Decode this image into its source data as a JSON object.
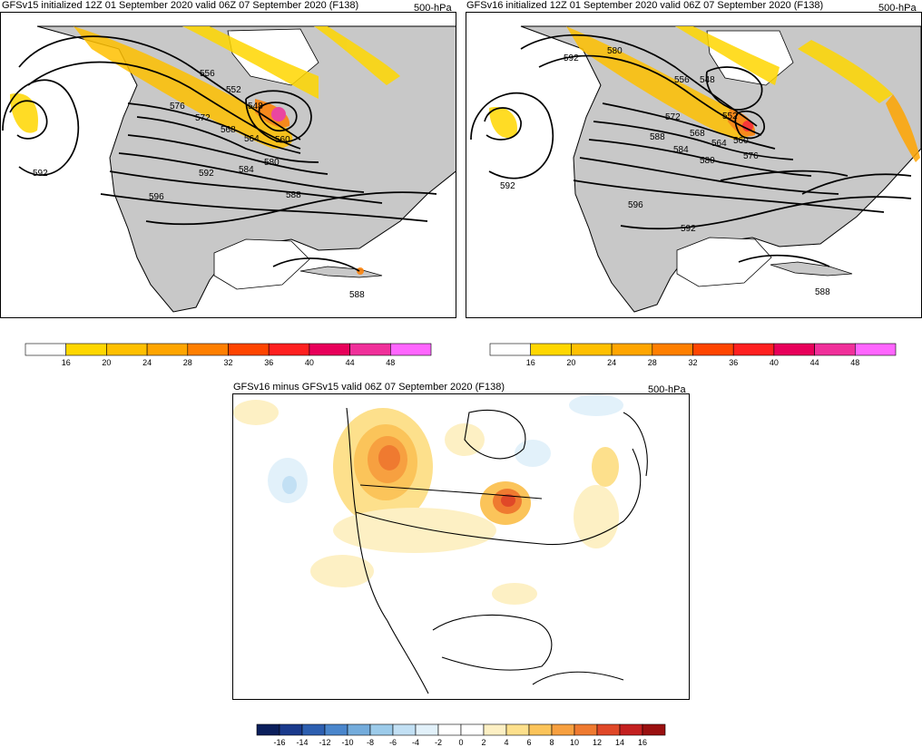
{
  "panels": [
    {
      "title": "GFSv15 initialized 12Z 01 September 2020 valid 06Z 07 September 2020 (F138)",
      "level": "500-hPa",
      "contour_labels": [
        "592",
        "576",
        "572",
        "568",
        "564",
        "560",
        "556",
        "552",
        "548",
        "584",
        "580",
        "592",
        "596",
        "588",
        "588"
      ]
    },
    {
      "title": "GFSv16 initialized 12Z 01 September 2020 valid 06Z 07 September 2020 (F138)",
      "level": "500-hPa",
      "contour_labels": [
        "592",
        "580",
        "556",
        "548",
        "572",
        "588",
        "584",
        "580",
        "568",
        "564",
        "552",
        "560",
        "576",
        "592",
        "596",
        "592",
        "588"
      ]
    },
    {
      "title": "GFSv16 minus GFSv15 valid 06Z 07 September 2020 (F138)",
      "level": "500-hPa"
    }
  ],
  "wind_colorbar": {
    "ticks": [
      "16",
      "20",
      "24",
      "28",
      "32",
      "36",
      "40",
      "44",
      "48"
    ],
    "colors": [
      "#ffffff",
      "#ffd700",
      "#ffc000",
      "#ffa500",
      "#ff7f00",
      "#ff4500",
      "#ff2020",
      "#e8005a",
      "#f0309a",
      "#ff66ff"
    ]
  },
  "diff_colorbar": {
    "ticks": [
      "-16",
      "-14",
      "-12",
      "-10",
      "-8",
      "-6",
      "-4",
      "-2",
      "0",
      "2",
      "4",
      "6",
      "8",
      "10",
      "12",
      "14",
      "16"
    ],
    "colors": [
      "#0b1f5c",
      "#1a3a8c",
      "#2d5fb0",
      "#4a86cc",
      "#74acdc",
      "#9ccbea",
      "#c2e0f4",
      "#e2f1fa",
      "#ffffff",
      "#ffffff",
      "#fdf0c4",
      "#fde08c",
      "#fbc45a",
      "#f7a040",
      "#ef7a30",
      "#e04828",
      "#c42020",
      "#9a1010"
    ]
  }
}
